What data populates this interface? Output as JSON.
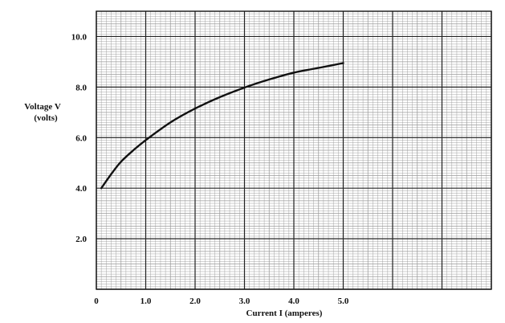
{
  "chart_data": {
    "type": "line",
    "ylabel_line1": "Voltage  V",
    "ylabel_line2": "(volts)",
    "xlabel": "Current I (amperes)",
    "xlim": [
      0,
      8
    ],
    "ylim": [
      0,
      11
    ],
    "x_ticks": [
      "0",
      "1.0",
      "2.0",
      "3.0",
      "4.0",
      "5.0"
    ],
    "x_tick_values": [
      0,
      1,
      2,
      3,
      4,
      5
    ],
    "y_ticks": [
      "2.0",
      "4.0",
      "6.0",
      "8.0",
      "10.0"
    ],
    "y_tick_values": [
      2,
      4,
      6,
      8,
      10
    ],
    "grid": true,
    "series": [
      {
        "x": [
          0.1,
          0.3,
          0.5,
          0.75,
          1.0,
          1.5,
          2.0,
          2.5,
          3.0,
          3.5,
          4.0,
          4.5,
          5.0
        ],
        "y": [
          4.0,
          4.55,
          5.05,
          5.5,
          5.9,
          6.6,
          7.15,
          7.6,
          7.98,
          8.3,
          8.57,
          8.76,
          8.95
        ]
      }
    ],
    "colors": {
      "line": "#111111",
      "major_grid": "#222222",
      "minor_grid": "#9a9a9a",
      "background": "#ffffff"
    }
  }
}
